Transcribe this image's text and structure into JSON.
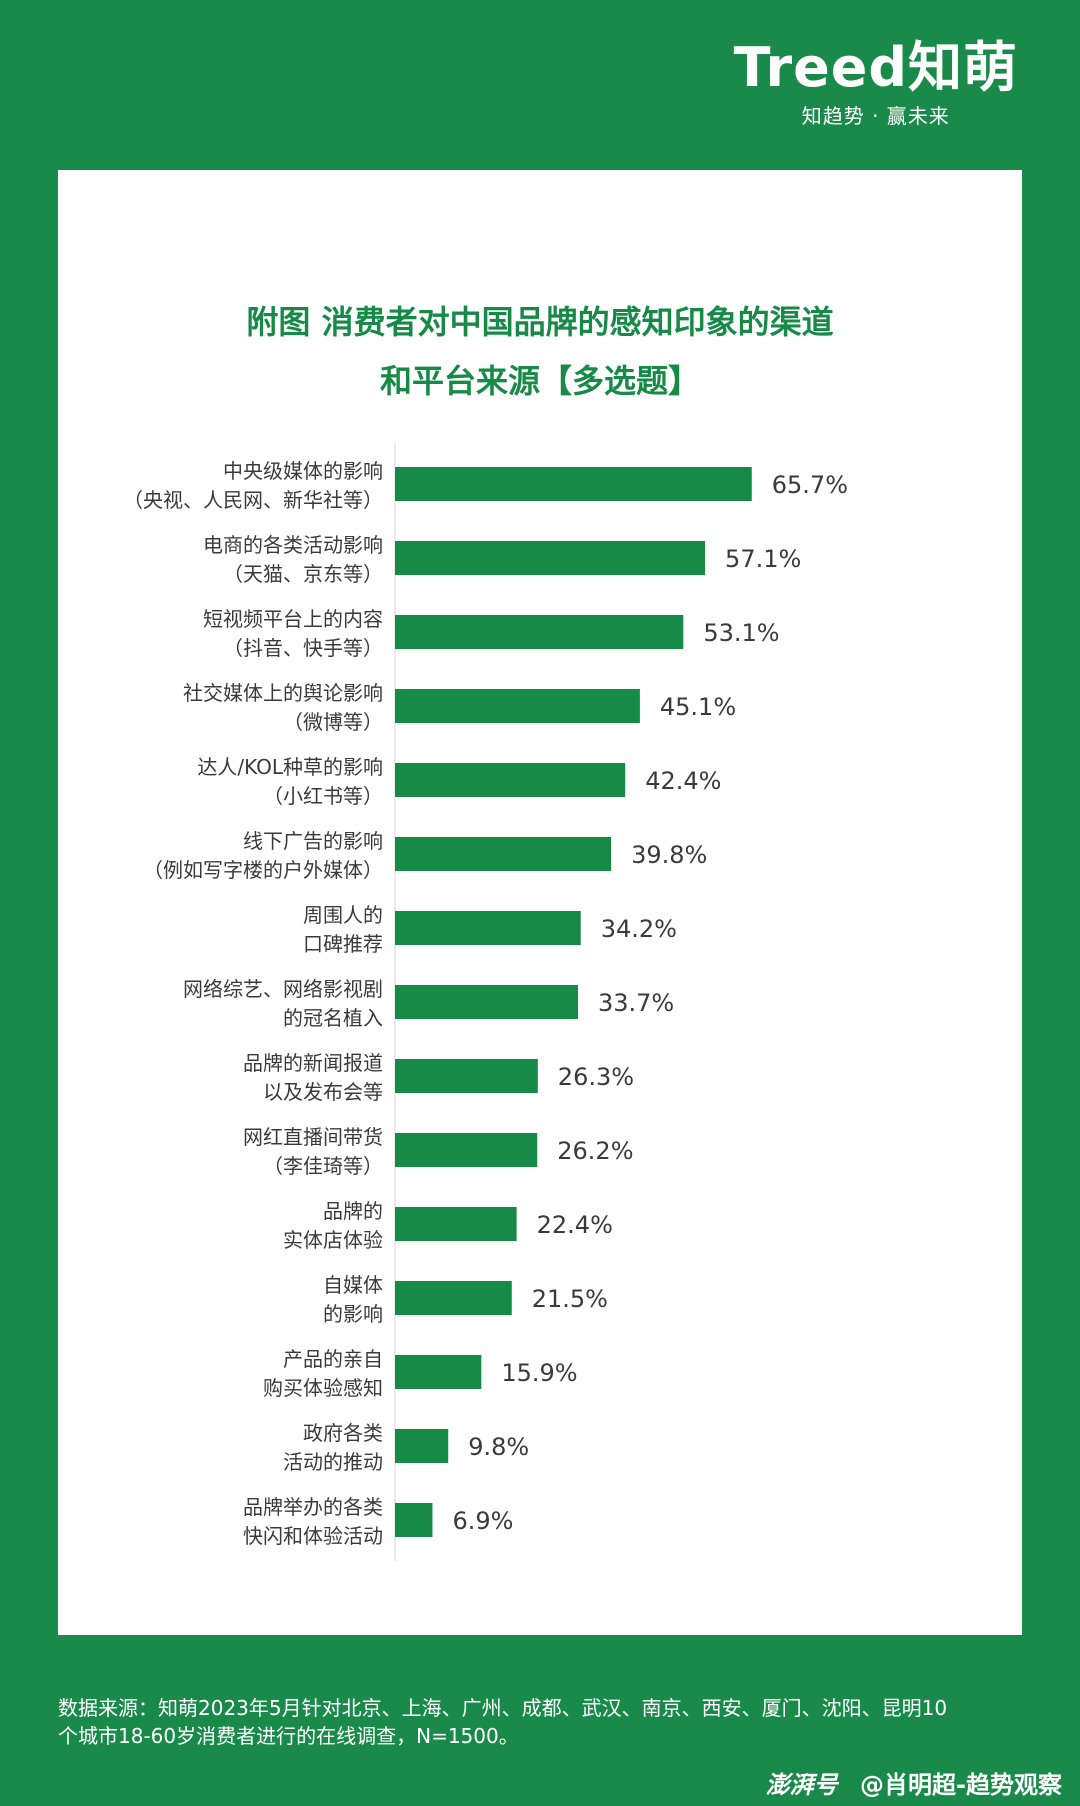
{
  "logo": {
    "brand": "Treed知萌",
    "tagline": "知趋势 · 赢未来"
  },
  "title_line1": "附图 消费者对中国品牌的感知印象的渠道",
  "title_line2": "和平台来源【多选题】",
  "footer": {
    "line1": "数据来源：知萌2023年5月针对北京、上海、广州、成都、武汉、南京、西安、厦门、沈阳、昆明10",
    "line2": "个城市18-60岁消费者进行的在线调查，N=1500。"
  },
  "credit": {
    "brand": "澎湃号",
    "author": "@肖明超-趋势观察"
  },
  "colors": {
    "background": "#1a8a4a",
    "bar": "#178a47",
    "text": "#3a3a3a"
  },
  "chart_data": {
    "type": "bar",
    "orientation": "horizontal",
    "title": "附图 消费者对中国品牌的感知印象的渠道和平台来源【多选题】",
    "unit": "%",
    "categories": [
      [
        "中央级媒体的影响",
        "（央视、人民网、新华社等）"
      ],
      [
        "电商的各类活动影响",
        "（天猫、京东等）"
      ],
      [
        "短视频平台上的内容",
        "（抖音、快手等）"
      ],
      [
        "社交媒体上的舆论影响",
        "（微博等）"
      ],
      [
        "达人/KOL种草的影响",
        "（小红书等）"
      ],
      [
        "线下广告的影响",
        "（例如写字楼的户外媒体）"
      ],
      [
        "周围人的",
        "口碑推荐"
      ],
      [
        "网络综艺、网络影视剧",
        "的冠名植入"
      ],
      [
        "品牌的新闻报道",
        "以及发布会等"
      ],
      [
        "网红直播间带货",
        "（李佳琦等）"
      ],
      [
        "品牌的",
        "实体店体验"
      ],
      [
        "自媒体",
        "的影响"
      ],
      [
        "产品的亲自",
        "购买体验感知"
      ],
      [
        "政府各类",
        "活动的推动"
      ],
      [
        "品牌举办的各类",
        "快闪和体验活动"
      ]
    ],
    "values": [
      65.7,
      57.1,
      53.1,
      45.1,
      42.4,
      39.8,
      34.2,
      33.7,
      26.3,
      26.2,
      22.4,
      21.5,
      15.9,
      9.8,
      6.9
    ],
    "value_labels": [
      "65.7%",
      "57.1%",
      "53.1%",
      "45.1%",
      "42.4%",
      "39.8%",
      "34.2%",
      "33.7%",
      "26.3%",
      "26.2%",
      "22.4%",
      "21.5%",
      "15.9%",
      "9.8%",
      "6.9%"
    ]
  }
}
